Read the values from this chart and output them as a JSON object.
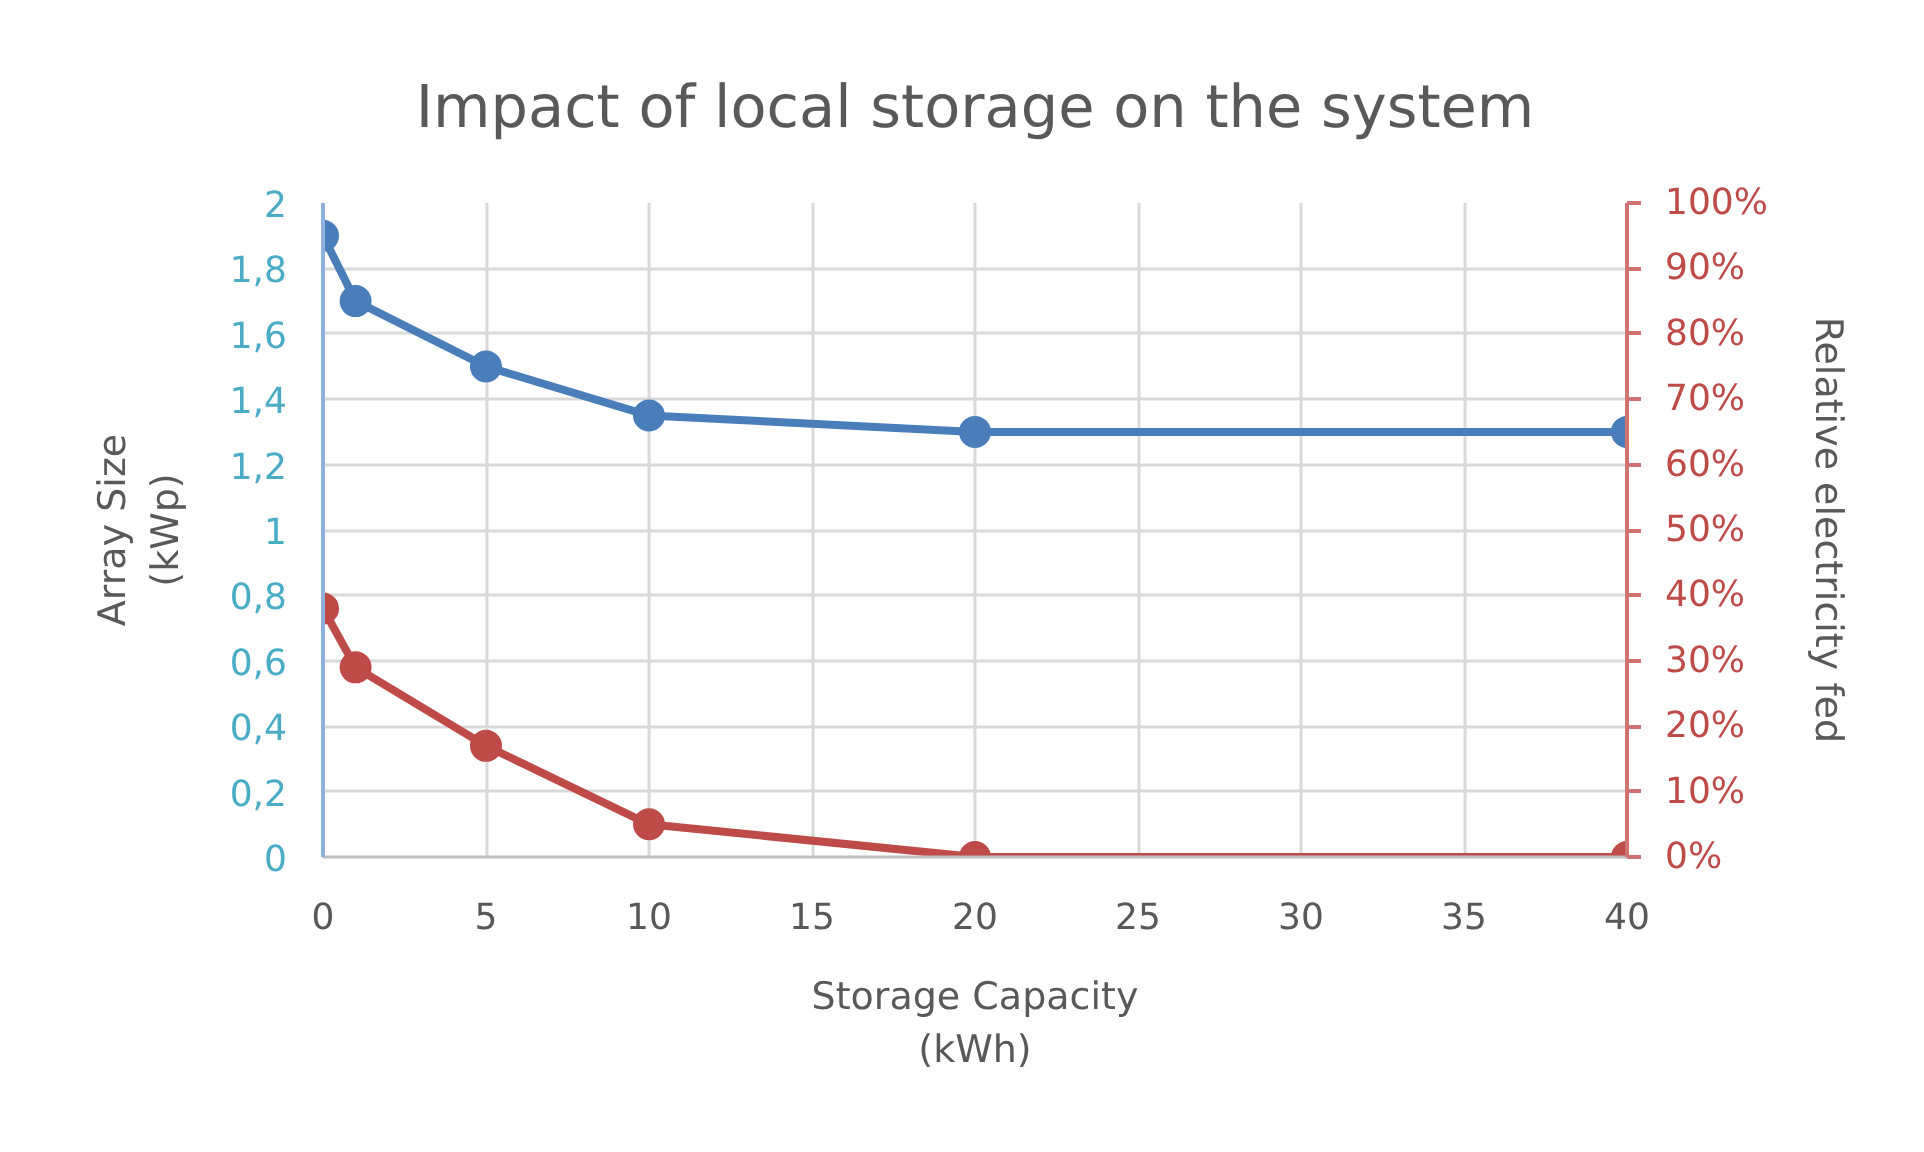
{
  "chart_data": {
    "type": "line",
    "title": "Impact of local storage on the system",
    "xlabel": "Storage Capacity\n(kWh)",
    "ylabel": "Array Size\n(kWp)",
    "y2label": "Relative electricity fed",
    "x": [
      0,
      1,
      5,
      10,
      20,
      40
    ],
    "series": [
      {
        "color": "#4a7ebb",
        "values": [
          1.9,
          1.7,
          1.5,
          1.35,
          1.3,
          1.3
        ]
      },
      {
        "color": "#be4b48",
        "axis": "y2",
        "values": [
          38,
          29,
          17,
          5,
          0,
          0
        ]
      }
    ],
    "xlim": [
      0,
      40
    ],
    "xticks": [
      0,
      5,
      10,
      15,
      20,
      25,
      30,
      35,
      40
    ],
    "ylim": [
      0,
      2
    ],
    "yticks": [
      0,
      {
        "value": 0.2,
        "label": "0,2"
      },
      {
        "value": 0.4,
        "label": "0,4"
      },
      {
        "value": 0.6,
        "label": "0,6"
      },
      {
        "value": 0.8,
        "label": "0,8"
      },
      1,
      {
        "value": 1.2,
        "label": "1,2"
      },
      {
        "value": 1.4,
        "label": "1,4"
      },
      {
        "value": 1.6,
        "label": "1,6"
      },
      {
        "value": 1.8,
        "label": "1,8"
      },
      2
    ],
    "y2lim": [
      0,
      100
    ],
    "y2ticks": [
      {
        "value": 0,
        "label": "0%"
      },
      {
        "value": 10,
        "label": "10%"
      },
      {
        "value": 20,
        "label": "20%"
      },
      {
        "value": 30,
        "label": "30%"
      },
      {
        "value": 40,
        "label": "40%"
      },
      {
        "value": 50,
        "label": "50%"
      },
      {
        "value": 60,
        "label": "60%"
      },
      {
        "value": 70,
        "label": "70%"
      },
      {
        "value": 80,
        "label": "80%"
      },
      {
        "value": 90,
        "label": "90%"
      },
      {
        "value": 100,
        "label": "100%"
      }
    ],
    "grid": true,
    "marker": "circle",
    "line_style": "solid"
  }
}
